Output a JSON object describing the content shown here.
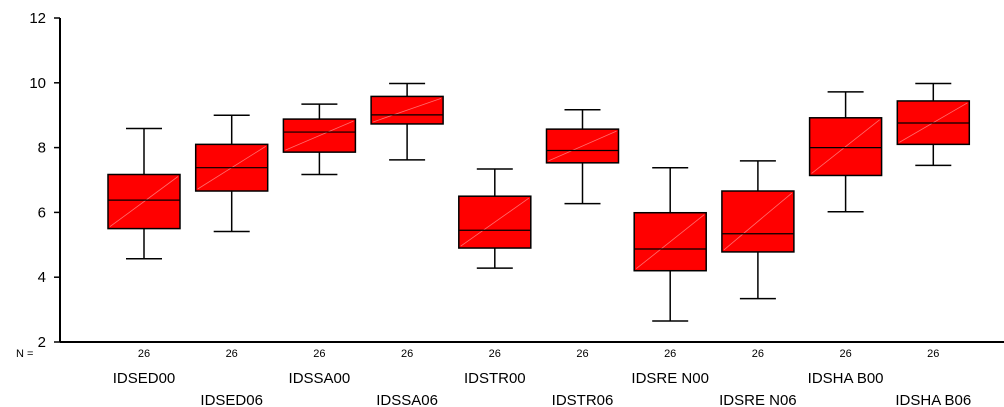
{
  "chart_data": {
    "type": "boxplot",
    "title": "",
    "xlabel": "",
    "ylabel": "",
    "ylim": [
      2,
      12
    ],
    "yticks": [
      2,
      4,
      6,
      8,
      10,
      12
    ],
    "n_prefix": "N =",
    "categories": [
      "IDSED00",
      "IDSED06",
      "IDSSA00",
      "IDSSA06",
      "IDSTR00",
      "IDSTR06",
      "IDSREN00",
      "IDSREN06",
      "IDSHAB00",
      "IDSHAB06"
    ],
    "category_display": [
      "IDSED00",
      "IDSED06",
      "IDSSA00",
      "IDSSA06",
      "IDSTR00",
      "IDSTR06",
      "IDSRE N00",
      "IDSRE N06",
      "IDSHA B00",
      "IDSHA B06"
    ],
    "n": [
      26,
      26,
      26,
      26,
      26,
      26,
      26,
      26,
      26,
      26
    ],
    "boxes": [
      {
        "whisker_low": 4.57,
        "q1": 5.5,
        "median": 6.38,
        "q3": 7.17,
        "whisker_high": 8.59
      },
      {
        "whisker_low": 5.41,
        "q1": 6.66,
        "median": 7.38,
        "q3": 8.1,
        "whisker_high": 9.0
      },
      {
        "whisker_low": 7.17,
        "q1": 7.86,
        "median": 8.48,
        "q3": 8.88,
        "whisker_high": 9.34
      },
      {
        "whisker_low": 7.62,
        "q1": 8.73,
        "median": 9.01,
        "q3": 9.58,
        "whisker_high": 9.98
      },
      {
        "whisker_low": 4.28,
        "q1": 4.9,
        "median": 5.45,
        "q3": 6.5,
        "whisker_high": 7.34
      },
      {
        "whisker_low": 6.27,
        "q1": 7.53,
        "median": 7.91,
        "q3": 8.57,
        "whisker_high": 9.17
      },
      {
        "whisker_low": 2.65,
        "q1": 4.2,
        "median": 4.87,
        "q3": 5.99,
        "whisker_high": 7.38
      },
      {
        "whisker_low": 3.34,
        "q1": 4.78,
        "median": 5.34,
        "q3": 6.66,
        "whisker_high": 7.59
      },
      {
        "whisker_low": 6.02,
        "q1": 7.14,
        "median": 8.0,
        "q3": 8.92,
        "whisker_high": 9.72
      },
      {
        "whisker_low": 7.45,
        "q1": 8.1,
        "median": 8.76,
        "q3": 9.44,
        "whisker_high": 9.98
      }
    ],
    "box_color": "#ff0000",
    "line_color": "#000000",
    "grid": false,
    "legend": "none"
  }
}
